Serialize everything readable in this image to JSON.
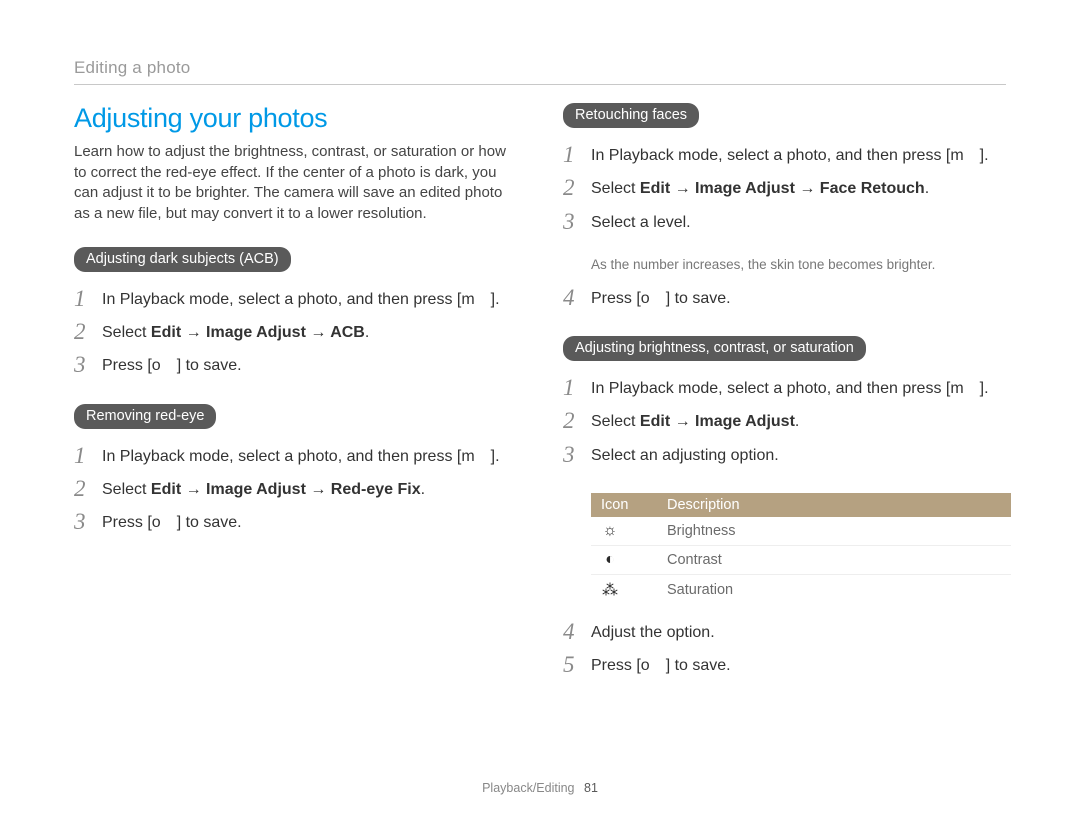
{
  "breadcrumb": "Editing a photo",
  "main_heading": "Adjusting your photos",
  "intro": "Learn how to adjust the brightness, contrast, or saturation or how to correct the red-eye effect. If the center of a photo is dark, you can adjust it to be brighter. The camera will save an edited photo as a new file, but may convert it to a lower resolution.",
  "colors": {
    "heading": "#0099e6",
    "pill_bg": "#5a5a5a",
    "pill_fg": "#ffffff",
    "table_header_bg": "#b5a181",
    "breadcrumb": "#9a9a9a",
    "stepnum": "#8a8a8a"
  },
  "left": {
    "sec1": {
      "pill": "Adjusting dark subjects (ACB)",
      "s1": "In Playback mode, select a photo, and then press [m ].",
      "s2a": "Select ",
      "s2b": "Edit → Image Adjust → ACB",
      "s2c": ".",
      "s3": "Press [o ] to save."
    },
    "sec2": {
      "pill": "Removing red-eye",
      "s1": "In Playback mode, select a photo, and then press [m ].",
      "s2a": "Select ",
      "s2b": "Edit → Image Adjust → Red-eye Fix",
      "s2c": ".",
      "s3": "Press [o ] to save."
    }
  },
  "right": {
    "sec1": {
      "pill": "Retouching faces",
      "s1": "In Playback mode, select a photo, and then press [m ].",
      "s2a": "Select ",
      "s2b": "Edit → Image Adjust → Face Retouch",
      "s2c": ".",
      "s3": "Select a level.",
      "s3n": "As the number increases, the skin tone becomes brighter.",
      "s4": "Press [o ] to save."
    },
    "sec2": {
      "pill": "Adjusting brightness, contrast, or saturation",
      "s1": "In Playback mode, select a photo, and then press [m ].",
      "s2a": "Select ",
      "s2b": "Edit → Image Adjust",
      "s2c": ".",
      "s3": "Select an adjusting option.",
      "s4": "Adjust the option.",
      "s5": "Press [o ] to save."
    }
  },
  "table": {
    "h1": "Icon",
    "h2": "Description",
    "rows": [
      {
        "icon": "☼",
        "label": "Brightness",
        "name": "brightness-icon"
      },
      {
        "icon": "◐",
        "label": "Contrast",
        "name": "contrast-icon"
      },
      {
        "icon": "⁂",
        "label": "Saturation",
        "name": "saturation-icon"
      }
    ]
  },
  "footer": {
    "section": "Playback/Editing",
    "page": "81"
  }
}
